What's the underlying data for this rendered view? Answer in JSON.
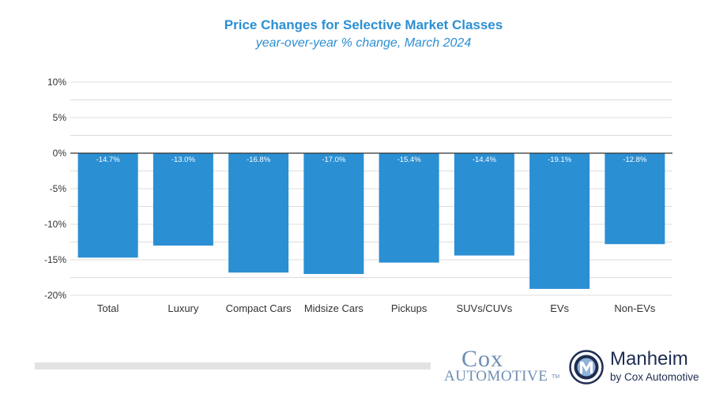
{
  "chart_data": {
    "type": "bar",
    "title": "Price Changes for Selective Market Classes",
    "subtitle": "year-over-year % change, March 2024",
    "categories": [
      "Total",
      "Luxury",
      "Compact Cars",
      "Midsize Cars",
      "Pickups",
      "SUVs/CUVs",
      "EVs",
      "Non-EVs"
    ],
    "values": [
      -14.7,
      -13.0,
      -16.8,
      -17.0,
      -15.4,
      -14.4,
      -19.1,
      -12.8
    ],
    "value_labels": [
      "-14.7%",
      "-13.0%",
      "-16.8%",
      "-17.0%",
      "-15.4%",
      "-14.4%",
      "-19.1%",
      "-12.8%"
    ],
    "ylim": [
      -20,
      10
    ],
    "y_ticks": [
      10,
      5,
      0,
      -5,
      -10,
      -15,
      -20
    ],
    "y_tick_labels": [
      "10%",
      "5%",
      "0%",
      "-5%",
      "-10%",
      "-15%",
      "-20%"
    ],
    "xlabel": "",
    "ylabel": "",
    "grid": true,
    "bar_color": "#2b8fd3",
    "title_color": "#2b8fd3"
  },
  "logos": {
    "cox_line1": "Cox",
    "cox_line2": "AUTOMOTIVE",
    "cox_tm": "TM",
    "manheim_name": "Manheim",
    "manheim_sub": "by Cox Automotive",
    "manheim_icon": "manheim-m-roundel-icon"
  }
}
